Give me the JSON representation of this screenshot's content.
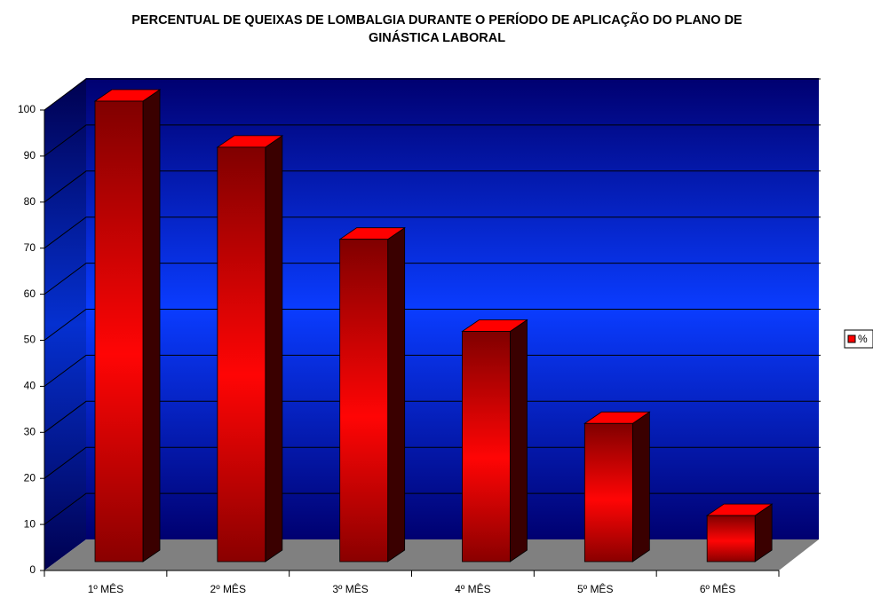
{
  "chart_data": {
    "type": "bar3d",
    "title": "PERCENTUAL DE QUEIXAS DE LOMBALGIA DURANTE O PERÍODO DE APLICAÇÃO DO PLANO DE GINÁSTICA LABORAL",
    "categories": [
      "1º MÊS",
      "2º MÊS",
      "3º MÊS",
      "4º MÊS",
      "5º MÊS",
      "6º MÊS"
    ],
    "series": [
      {
        "name": "%",
        "color": "#ff0000",
        "values": [
          100,
          90,
          70,
          50,
          30,
          10
        ]
      }
    ],
    "ylim": [
      0,
      100
    ],
    "yticks": [
      0,
      10,
      20,
      30,
      40,
      50,
      60,
      70,
      80,
      90,
      100
    ],
    "grid": true,
    "legend": "right"
  }
}
